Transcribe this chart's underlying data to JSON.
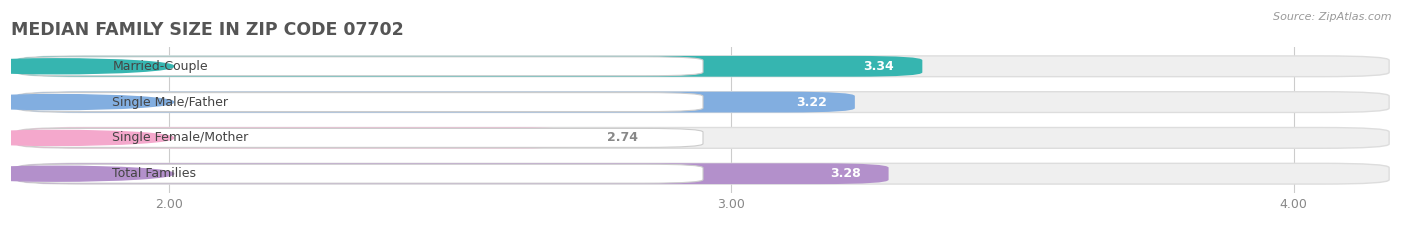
{
  "title": "MEDIAN FAMILY SIZE IN ZIP CODE 07702",
  "source": "Source: ZipAtlas.com",
  "categories": [
    "Married-Couple",
    "Single Male/Father",
    "Single Female/Mother",
    "Total Families"
  ],
  "values": [
    3.34,
    3.22,
    2.74,
    3.28
  ],
  "bar_colors": [
    "#36b5b0",
    "#82aee0",
    "#f4a8cc",
    "#b390cb"
  ],
  "bg_bar_color": "#ebebeb",
  "figure_bg": "#ffffff",
  "xlim_min": 1.72,
  "xlim_max": 4.18,
  "xticks": [
    2.0,
    3.0,
    4.0
  ],
  "xtick_labels": [
    "2.00",
    "3.00",
    "4.00"
  ],
  "bar_height": 0.58,
  "title_color": "#555555",
  "label_color": "#444444",
  "value_color_inside": "#ffffff",
  "value_color_outside": "#888888",
  "title_fontsize": 12.5,
  "label_fontsize": 9,
  "value_fontsize": 9,
  "tick_fontsize": 9,
  "pill_color": "#ffffff",
  "pill_border_color": "#dddddd",
  "grid_color": "#cccccc",
  "bar_gap": 0.08
}
